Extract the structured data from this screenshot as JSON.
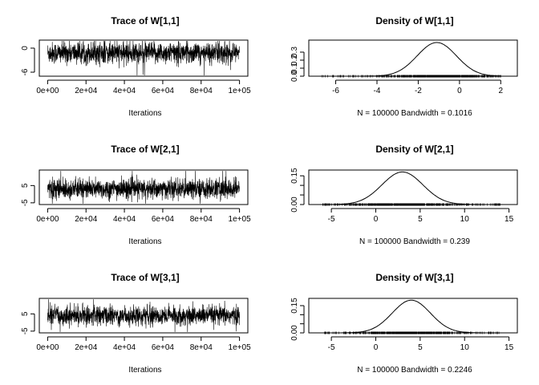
{
  "chart_data": [
    {
      "type": "line",
      "title": "Trace of W[1,1]",
      "xlabel": "Iterations",
      "ylabel": "",
      "xlim": [
        0,
        100000
      ],
      "ylim": [
        -7,
        2
      ],
      "xticks": [
        0,
        20000,
        40000,
        60000,
        80000,
        100000
      ],
      "xtick_labels": [
        "0e+00",
        "2e+04",
        "4e+04",
        "6e+04",
        "8e+04",
        "1e+05"
      ],
      "yticks": [
        -6,
        0
      ],
      "ytick_labels": [
        "-6",
        "0"
      ],
      "series": [
        {
          "values_summary": {
            "n": 100000,
            "center": -1.2,
            "typical_band": [
              -4.4,
              1.0
            ],
            "extremes": [
              -6.8,
              1.8
            ]
          }
        }
      ]
    },
    {
      "type": "line",
      "title": "Density of W[1,1]",
      "xlabel": "N = 100000   Bandwidth = 0.1016",
      "ylabel": "",
      "xlim": [
        -6.9,
        2.4
      ],
      "ylim": [
        0,
        0.45
      ],
      "xticks": [
        -6,
        -4,
        -2,
        0,
        2
      ],
      "xtick_labels": [
        "-6",
        "-4",
        "-2",
        "0",
        "2"
      ],
      "yticks": [
        0,
        0.1,
        0.2,
        0.3
      ],
      "ytick_labels": [
        "0.0",
        "0.1",
        "0.2",
        "0.3"
      ],
      "series": [
        {
          "mean": -1.1,
          "sd": 0.95,
          "peak": 0.42,
          "support": [
            -6.7,
            2.0
          ]
        }
      ]
    },
    {
      "type": "line",
      "title": "Trace of W[2,1]",
      "xlabel": "Iterations",
      "ylabel": "",
      "xlim": [
        0,
        100000
      ],
      "ylim": [
        -6,
        14
      ],
      "xticks": [
        0,
        20000,
        40000,
        60000,
        80000,
        100000
      ],
      "xtick_labels": [
        "0e+00",
        "2e+04",
        "4e+04",
        "6e+04",
        "8e+04",
        "1e+05"
      ],
      "yticks": [
        -5,
        5
      ],
      "ytick_labels": [
        "-5",
        "5"
      ],
      "series": [
        {
          "values_summary": {
            "n": 100000,
            "center": 3.0,
            "typical_band": [
              -2.5,
              9.0
            ],
            "extremes": [
              -5.5,
              13.5
            ]
          }
        }
      ]
    },
    {
      "type": "line",
      "title": "Density of W[2,1]",
      "xlabel": "N = 100000   Bandwidth = 0.239",
      "ylabel": "",
      "xlim": [
        -6.6,
        15
      ],
      "ylim": [
        0,
        0.18
      ],
      "xticks": [
        -5,
        0,
        5,
        10,
        15
      ],
      "xtick_labels": [
        "-5",
        "0",
        "5",
        "10",
        "15"
      ],
      "yticks": [
        0,
        0.05,
        0.1,
        0.15
      ],
      "ytick_labels": [
        "0.00",
        "",
        "",
        "0.15"
      ],
      "series": [
        {
          "mean": 3.0,
          "sd": 2.3,
          "peak": 0.17,
          "support": [
            -6.0,
            14.2
          ]
        }
      ]
    },
    {
      "type": "line",
      "title": "Trace of W[3,1]",
      "xlabel": "Iterations",
      "ylabel": "",
      "xlim": [
        0,
        100000
      ],
      "ylim": [
        -6,
        14
      ],
      "xticks": [
        0,
        20000,
        40000,
        60000,
        80000,
        100000
      ],
      "xtick_labels": [
        "0e+00",
        "2e+04",
        "4e+04",
        "6e+04",
        "8e+04",
        "1e+05"
      ],
      "yticks": [
        -5,
        5
      ],
      "ytick_labels": [
        "-5",
        "5"
      ],
      "series": [
        {
          "values_summary": {
            "n": 100000,
            "center": 4.0,
            "typical_band": [
              -1.5,
              9.5
            ],
            "extremes": [
              -5.5,
              13.5
            ]
          }
        }
      ]
    },
    {
      "type": "line",
      "title": "Density of W[3,1]",
      "xlabel": "N = 100000   Bandwidth = 0.2246",
      "ylabel": "",
      "xlim": [
        -6.6,
        15
      ],
      "ylim": [
        0,
        0.19
      ],
      "xticks": [
        -5,
        0,
        5,
        10,
        15
      ],
      "xtick_labels": [
        "-5",
        "0",
        "5",
        "10",
        "15"
      ],
      "yticks": [
        0,
        0.05,
        0.1,
        0.15
      ],
      "ytick_labels": [
        "0.00",
        "",
        "",
        "0.15"
      ],
      "series": [
        {
          "mean": 4.0,
          "sd": 2.15,
          "peak": 0.18,
          "support": [
            -6.0,
            14.2
          ]
        }
      ]
    }
  ]
}
